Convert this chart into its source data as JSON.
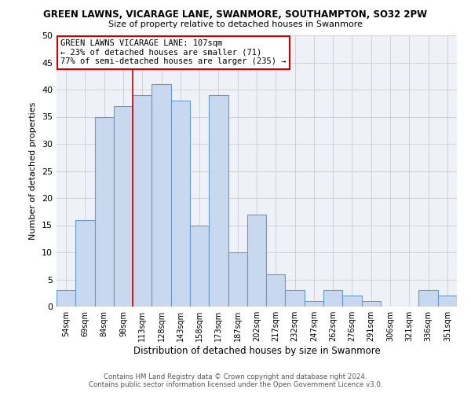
{
  "title": "GREEN LAWNS, VICARAGE LANE, SWANMORE, SOUTHAMPTON, SO32 2PW",
  "subtitle": "Size of property relative to detached houses in Swanmore",
  "xlabel": "Distribution of detached houses by size in Swanmore",
  "ylabel": "Number of detached properties",
  "bar_color": "#c8d8ee",
  "bar_edge_color": "#6699cc",
  "plot_bg_color": "#eef2f8",
  "categories": [
    "54sqm",
    "69sqm",
    "84sqm",
    "98sqm",
    "113sqm",
    "128sqm",
    "143sqm",
    "158sqm",
    "173sqm",
    "187sqm",
    "202sqm",
    "217sqm",
    "232sqm",
    "247sqm",
    "262sqm",
    "276sqm",
    "291sqm",
    "306sqm",
    "321sqm",
    "336sqm",
    "351sqm"
  ],
  "values": [
    3,
    16,
    35,
    37,
    39,
    41,
    38,
    15,
    39,
    10,
    17,
    6,
    3,
    1,
    3,
    2,
    1,
    0,
    0,
    3,
    2
  ],
  "ylim": [
    0,
    50
  ],
  "yticks": [
    0,
    5,
    10,
    15,
    20,
    25,
    30,
    35,
    40,
    45,
    50
  ],
  "annotation_title": "GREEN LAWNS VICARAGE LANE: 107sqm",
  "annotation_line1": "← 23% of detached houses are smaller (71)",
  "annotation_line2": "77% of semi-detached houses are larger (235) →",
  "annotation_box_color": "#ffffff",
  "annotation_box_edge": "#cc0000",
  "property_line_x": 3.5,
  "property_line_color": "#cc0000",
  "footer_line1": "Contains HM Land Registry data © Crown copyright and database right 2024.",
  "footer_line2": "Contains public sector information licensed under the Open Government Licence v3.0.",
  "background_color": "#ffffff",
  "grid_color": "#cccccc",
  "title_fontsize": 8.5,
  "subtitle_fontsize": 8.0
}
